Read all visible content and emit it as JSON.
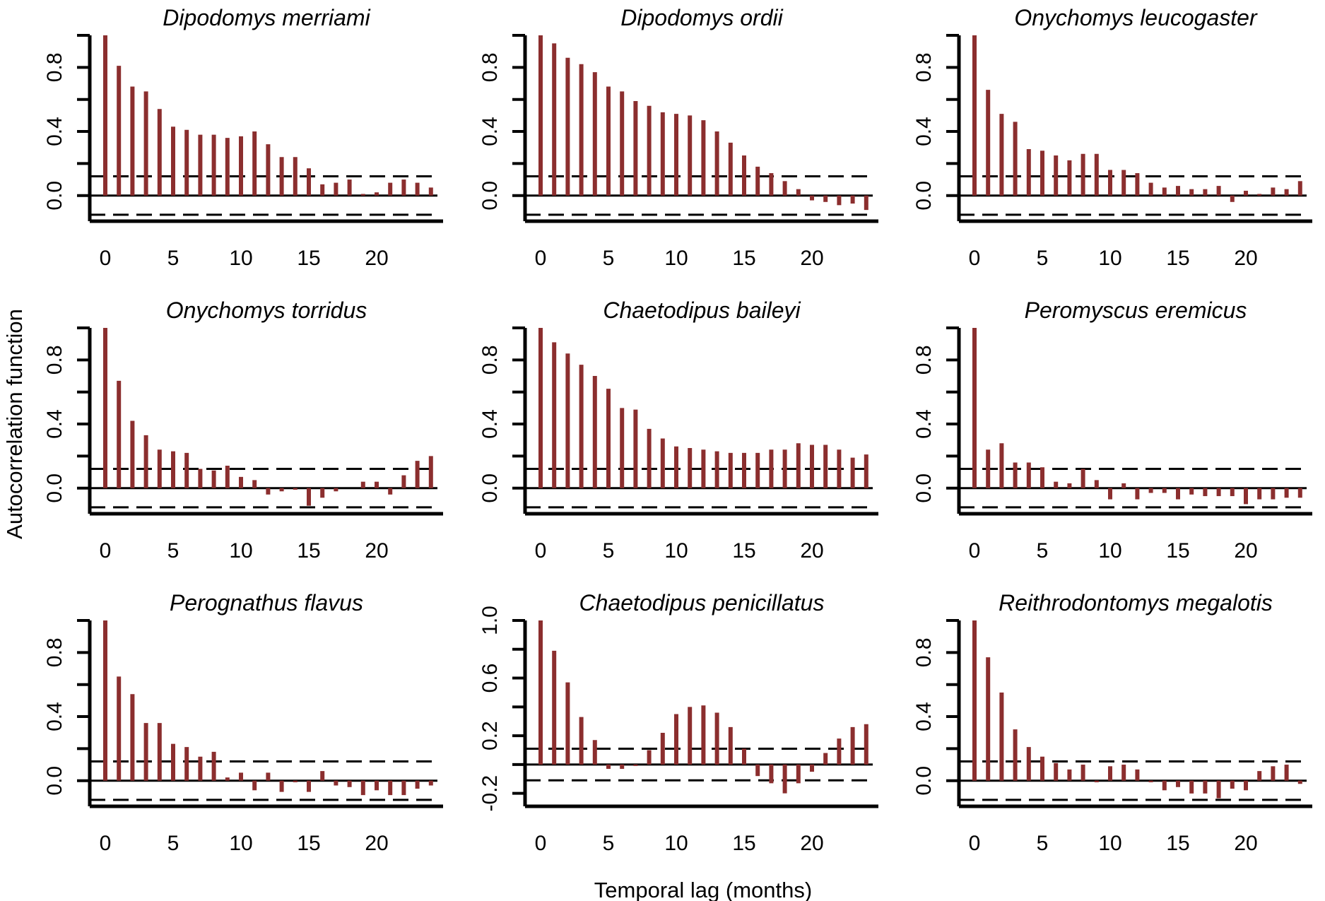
{
  "figure": {
    "xlabel": "Temporal lag (months)",
    "ylabel": "Autocorrelation function",
    "bar_color": "#8B2E2E",
    "axis_color": "#000000"
  },
  "chart_data": [
    {
      "type": "bar",
      "title": "Dipodomys merriami",
      "x": [
        0,
        1,
        2,
        3,
        4,
        5,
        6,
        7,
        8,
        9,
        10,
        11,
        12,
        13,
        14,
        15,
        16,
        17,
        18,
        19,
        20,
        21,
        22,
        23,
        24
      ],
      "values": [
        1.0,
        0.81,
        0.68,
        0.65,
        0.54,
        0.43,
        0.41,
        0.38,
        0.38,
        0.36,
        0.37,
        0.4,
        0.32,
        0.24,
        0.24,
        0.17,
        0.07,
        0.08,
        0.1,
        0.01,
        0.02,
        0.08,
        0.1,
        0.08,
        0.05
      ],
      "conf_limit": 0.12,
      "ylim": [
        -0.16,
        1.0
      ],
      "yticks": [
        0.0,
        0.4,
        0.8
      ],
      "yticklabels": [
        "0.0",
        "0.4",
        "0.8"
      ],
      "xticks": [
        0,
        5,
        10,
        15,
        20
      ],
      "xticklabels": [
        "0",
        "5",
        "10",
        "15",
        "20"
      ]
    },
    {
      "type": "bar",
      "title": "Dipodomys ordii",
      "x": [
        0,
        1,
        2,
        3,
        4,
        5,
        6,
        7,
        8,
        9,
        10,
        11,
        12,
        13,
        14,
        15,
        16,
        17,
        18,
        19,
        20,
        21,
        22,
        23,
        24
      ],
      "values": [
        1.0,
        0.95,
        0.86,
        0.82,
        0.77,
        0.68,
        0.65,
        0.59,
        0.56,
        0.52,
        0.51,
        0.5,
        0.47,
        0.4,
        0.33,
        0.25,
        0.18,
        0.14,
        0.09,
        0.04,
        -0.03,
        -0.04,
        -0.06,
        -0.05,
        -0.09
      ],
      "conf_limit": 0.12,
      "ylim": [
        -0.16,
        1.0
      ],
      "yticks": [
        0.0,
        0.4,
        0.8
      ],
      "yticklabels": [
        "0.0",
        "0.4",
        "0.8"
      ],
      "xticks": [
        0,
        5,
        10,
        15,
        20
      ],
      "xticklabels": [
        "0",
        "5",
        "10",
        "15",
        "20"
      ]
    },
    {
      "type": "bar",
      "title": "Onychomys leucogaster",
      "x": [
        0,
        1,
        2,
        3,
        4,
        5,
        6,
        7,
        8,
        9,
        10,
        11,
        12,
        13,
        14,
        15,
        16,
        17,
        18,
        19,
        20,
        21,
        22,
        23,
        24
      ],
      "values": [
        1.0,
        0.66,
        0.51,
        0.46,
        0.29,
        0.28,
        0.25,
        0.22,
        0.26,
        0.26,
        0.16,
        0.16,
        0.14,
        0.08,
        0.05,
        0.06,
        0.04,
        0.04,
        0.06,
        -0.04,
        0.03,
        0.01,
        0.05,
        0.04,
        0.09
      ],
      "conf_limit": 0.12,
      "ylim": [
        -0.16,
        1.0
      ],
      "yticks": [
        0.0,
        0.4,
        0.8
      ],
      "yticklabels": [
        "0.0",
        "0.4",
        "0.8"
      ],
      "xticks": [
        0,
        5,
        10,
        15,
        20
      ],
      "xticklabels": [
        "0",
        "5",
        "10",
        "15",
        "20"
      ]
    },
    {
      "type": "bar",
      "title": "Onychomys torridus",
      "x": [
        0,
        1,
        2,
        3,
        4,
        5,
        6,
        7,
        8,
        9,
        10,
        11,
        12,
        13,
        14,
        15,
        16,
        17,
        18,
        19,
        20,
        21,
        22,
        23,
        24
      ],
      "values": [
        1.0,
        0.67,
        0.42,
        0.33,
        0.24,
        0.23,
        0.22,
        0.12,
        0.11,
        0.14,
        0.07,
        0.05,
        -0.04,
        -0.02,
        -0.01,
        -0.11,
        -0.06,
        -0.02,
        0.0,
        0.04,
        0.04,
        -0.04,
        0.08,
        0.17,
        0.2
      ],
      "conf_limit": 0.12,
      "ylim": [
        -0.16,
        1.0
      ],
      "yticks": [
        0.0,
        0.4,
        0.8
      ],
      "yticklabels": [
        "0.0",
        "0.4",
        "0.8"
      ],
      "xticks": [
        0,
        5,
        10,
        15,
        20
      ],
      "xticklabels": [
        "0",
        "5",
        "10",
        "15",
        "20"
      ]
    },
    {
      "type": "bar",
      "title": "Chaetodipus baileyi",
      "x": [
        0,
        1,
        2,
        3,
        4,
        5,
        6,
        7,
        8,
        9,
        10,
        11,
        12,
        13,
        14,
        15,
        16,
        17,
        18,
        19,
        20,
        21,
        22,
        23,
        24
      ],
      "values": [
        1.0,
        0.91,
        0.84,
        0.77,
        0.7,
        0.62,
        0.5,
        0.49,
        0.37,
        0.31,
        0.26,
        0.25,
        0.24,
        0.23,
        0.22,
        0.22,
        0.22,
        0.24,
        0.24,
        0.28,
        0.27,
        0.27,
        0.24,
        0.19,
        0.21
      ],
      "conf_limit": 0.12,
      "ylim": [
        -0.16,
        1.0
      ],
      "yticks": [
        0.0,
        0.4,
        0.8
      ],
      "yticklabels": [
        "0.0",
        "0.4",
        "0.8"
      ],
      "xticks": [
        0,
        5,
        10,
        15,
        20
      ],
      "xticklabels": [
        "0",
        "5",
        "10",
        "15",
        "20"
      ]
    },
    {
      "type": "bar",
      "title": "Peromyscus eremicus",
      "x": [
        0,
        1,
        2,
        3,
        4,
        5,
        6,
        7,
        8,
        9,
        10,
        11,
        12,
        13,
        14,
        15,
        16,
        17,
        18,
        19,
        20,
        21,
        22,
        23,
        24
      ],
      "values": [
        1.0,
        0.24,
        0.28,
        0.16,
        0.16,
        0.13,
        0.04,
        0.03,
        0.12,
        0.05,
        -0.07,
        0.03,
        -0.07,
        -0.03,
        -0.03,
        -0.07,
        -0.04,
        -0.05,
        -0.05,
        -0.05,
        -0.1,
        -0.07,
        -0.07,
        -0.06,
        -0.06
      ],
      "conf_limit": 0.12,
      "ylim": [
        -0.16,
        1.0
      ],
      "yticks": [
        0.0,
        0.4,
        0.8
      ],
      "yticklabels": [
        "0.0",
        "0.4",
        "0.8"
      ],
      "xticks": [
        0,
        5,
        10,
        15,
        20
      ],
      "xticklabels": [
        "0",
        "5",
        "10",
        "15",
        "20"
      ]
    },
    {
      "type": "bar",
      "title": "Perognathus flavus",
      "x": [
        0,
        1,
        2,
        3,
        4,
        5,
        6,
        7,
        8,
        9,
        10,
        11,
        12,
        13,
        14,
        15,
        16,
        17,
        18,
        19,
        20,
        21,
        22,
        23,
        24
      ],
      "values": [
        1.0,
        0.65,
        0.54,
        0.36,
        0.36,
        0.23,
        0.21,
        0.15,
        0.18,
        0.02,
        0.05,
        -0.06,
        0.05,
        -0.07,
        -0.01,
        -0.07,
        0.06,
        -0.03,
        -0.04,
        -0.09,
        -0.06,
        -0.09,
        -0.09,
        -0.05,
        -0.03
      ],
      "conf_limit": 0.12,
      "ylim": [
        -0.16,
        1.0
      ],
      "yticks": [
        0.0,
        0.4,
        0.8
      ],
      "yticklabels": [
        "0.0",
        "0.4",
        "0.8"
      ],
      "xticks": [
        0,
        5,
        10,
        15,
        20
      ],
      "xticklabels": [
        "0",
        "5",
        "10",
        "15",
        "20"
      ]
    },
    {
      "type": "bar",
      "title": "Chaetodipus penicillatus",
      "x": [
        0,
        1,
        2,
        3,
        4,
        5,
        6,
        7,
        8,
        9,
        10,
        11,
        12,
        13,
        14,
        15,
        16,
        17,
        18,
        19,
        20,
        21,
        22,
        23,
        24
      ],
      "values": [
        1.0,
        0.79,
        0.57,
        0.33,
        0.17,
        -0.03,
        -0.03,
        -0.01,
        0.1,
        0.22,
        0.35,
        0.4,
        0.41,
        0.36,
        0.26,
        0.11,
        -0.08,
        -0.13,
        -0.2,
        -0.13,
        -0.05,
        0.08,
        0.18,
        0.26,
        0.28
      ],
      "conf_limit": 0.11,
      "ylim": [
        -0.29,
        1.0
      ],
      "yticks": [
        -0.2,
        0.2,
        0.6,
        1.0
      ],
      "yticklabels": [
        "-0.2",
        "0.2",
        "0.6",
        "1.0"
      ],
      "xticks": [
        0,
        5,
        10,
        15,
        20
      ],
      "xticklabels": [
        "0",
        "5",
        "10",
        "15",
        "20"
      ]
    },
    {
      "type": "bar",
      "title": "Reithrodontomys megalotis",
      "x": [
        0,
        1,
        2,
        3,
        4,
        5,
        6,
        7,
        8,
        9,
        10,
        11,
        12,
        13,
        14,
        15,
        16,
        17,
        18,
        19,
        20,
        21,
        22,
        23,
        24
      ],
      "values": [
        1.0,
        0.77,
        0.55,
        0.32,
        0.21,
        0.15,
        0.11,
        0.07,
        0.1,
        -0.01,
        0.09,
        0.1,
        0.07,
        -0.01,
        -0.06,
        -0.04,
        -0.08,
        -0.08,
        -0.11,
        -0.05,
        -0.06,
        0.06,
        0.09,
        0.1,
        -0.02
      ],
      "conf_limit": 0.12,
      "ylim": [
        -0.16,
        1.0
      ],
      "yticks": [
        0.0,
        0.4,
        0.8
      ],
      "yticklabels": [
        "0.0",
        "0.4",
        "0.8"
      ],
      "xticks": [
        0,
        5,
        10,
        15,
        20
      ],
      "xticklabels": [
        "0",
        "5",
        "10",
        "15",
        "20"
      ]
    }
  ]
}
